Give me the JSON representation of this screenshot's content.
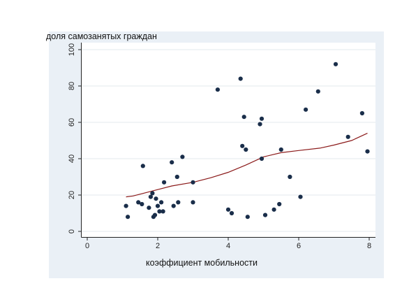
{
  "chart_data": {
    "type": "scatter",
    "title": "",
    "xlabel": "коэффициент мобильности",
    "ylabel": "доля самозанятых граждан",
    "xlim": [
      0,
      8
    ],
    "ylim": [
      0,
      100
    ],
    "x_ticks": [
      0,
      2,
      4,
      6,
      8
    ],
    "y_ticks": [
      0,
      20,
      40,
      60,
      80,
      100
    ],
    "grid": true,
    "legend": "none",
    "colors": {
      "outer_background": "#eaf0f6",
      "plot_background": "#ffffff",
      "points": "#1a2e4a",
      "fit_line": "#8b1a1a",
      "grid": "#e3e8ee"
    },
    "points": [
      {
        "x": 1.1,
        "y": 14
      },
      {
        "x": 1.15,
        "y": 8
      },
      {
        "x": 1.45,
        "y": 16
      },
      {
        "x": 1.55,
        "y": 15
      },
      {
        "x": 1.58,
        "y": 36
      },
      {
        "x": 1.75,
        "y": 13
      },
      {
        "x": 1.8,
        "y": 19
      },
      {
        "x": 1.85,
        "y": 21
      },
      {
        "x": 1.88,
        "y": 8
      },
      {
        "x": 1.92,
        "y": 9
      },
      {
        "x": 1.95,
        "y": 18
      },
      {
        "x": 2.0,
        "y": 14
      },
      {
        "x": 2.05,
        "y": 11
      },
      {
        "x": 2.1,
        "y": 16
      },
      {
        "x": 2.15,
        "y": 11
      },
      {
        "x": 2.18,
        "y": 27
      },
      {
        "x": 2.4,
        "y": 38
      },
      {
        "x": 2.45,
        "y": 14
      },
      {
        "x": 2.55,
        "y": 30
      },
      {
        "x": 2.58,
        "y": 16
      },
      {
        "x": 2.7,
        "y": 41
      },
      {
        "x": 3.0,
        "y": 27
      },
      {
        "x": 3.0,
        "y": 16
      },
      {
        "x": 3.7,
        "y": 78
      },
      {
        "x": 4.0,
        "y": 12
      },
      {
        "x": 4.1,
        "y": 10
      },
      {
        "x": 4.35,
        "y": 84
      },
      {
        "x": 4.4,
        "y": 47
      },
      {
        "x": 4.45,
        "y": 63
      },
      {
        "x": 4.5,
        "y": 45
      },
      {
        "x": 4.55,
        "y": 8
      },
      {
        "x": 4.9,
        "y": 59
      },
      {
        "x": 4.95,
        "y": 62
      },
      {
        "x": 4.95,
        "y": 40
      },
      {
        "x": 5.05,
        "y": 9
      },
      {
        "x": 5.3,
        "y": 12
      },
      {
        "x": 5.45,
        "y": 15
      },
      {
        "x": 5.5,
        "y": 45
      },
      {
        "x": 5.75,
        "y": 30
      },
      {
        "x": 6.05,
        "y": 19
      },
      {
        "x": 6.2,
        "y": 67
      },
      {
        "x": 6.55,
        "y": 77
      },
      {
        "x": 7.05,
        "y": 92
      },
      {
        "x": 7.4,
        "y": 52
      },
      {
        "x": 7.8,
        "y": 65
      },
      {
        "x": 7.95,
        "y": 44
      }
    ],
    "fit_line": [
      {
        "x": 1.1,
        "y": 19
      },
      {
        "x": 1.3,
        "y": 19.5
      },
      {
        "x": 1.6,
        "y": 21
      },
      {
        "x": 2.0,
        "y": 23
      },
      {
        "x": 2.4,
        "y": 25
      },
      {
        "x": 3.0,
        "y": 27
      },
      {
        "x": 3.5,
        "y": 29.5
      },
      {
        "x": 4.0,
        "y": 32.5
      },
      {
        "x": 4.5,
        "y": 36.5
      },
      {
        "x": 5.0,
        "y": 41
      },
      {
        "x": 5.5,
        "y": 43.3
      },
      {
        "x": 6.0,
        "y": 44.5
      },
      {
        "x": 6.6,
        "y": 45.8
      },
      {
        "x": 7.0,
        "y": 47.5
      },
      {
        "x": 7.5,
        "y": 50
      },
      {
        "x": 7.95,
        "y": 54
      }
    ]
  }
}
